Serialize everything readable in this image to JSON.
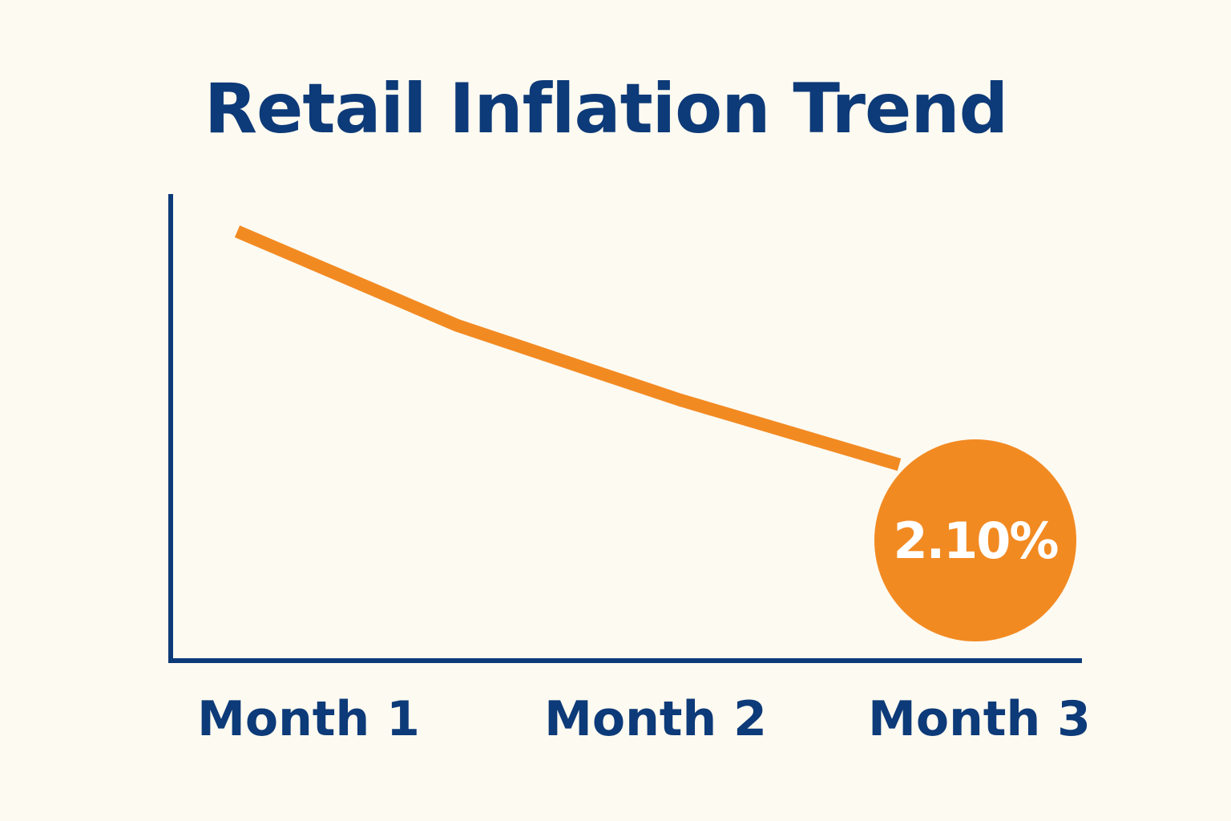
{
  "chart_data": {
    "type": "line",
    "title": "Retail Inflation Trend",
    "xlabel": "",
    "ylabel": "",
    "categories": [
      "Month 1",
      "Month 2",
      "Month 3"
    ],
    "series": [
      {
        "values": [
          4.6,
          3.4,
          2.1
        ]
      }
    ],
    "callout": {
      "label": "2.10%",
      "value": 2.1,
      "category": "Month 3"
    },
    "ylim": [
      0,
      5
    ],
    "grid": false,
    "legend": "none"
  },
  "colors": {
    "background": "#fdfaf1",
    "axis": "#0d3a78",
    "text": "#0d3a78",
    "line": "#f28a22",
    "callout_fill": "#f28a22",
    "callout_text": "#ffffff"
  }
}
